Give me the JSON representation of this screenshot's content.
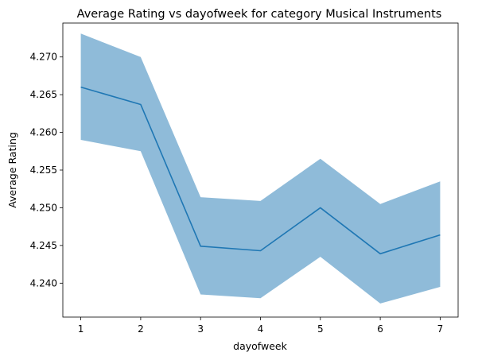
{
  "chart_data": {
    "type": "line",
    "title": "Average Rating vs dayofweek for category Musical Instruments",
    "xlabel": "dayofweek",
    "ylabel": "Average Rating",
    "x": [
      1,
      2,
      3,
      4,
      5,
      6,
      7
    ],
    "x_tick_labels": [
      "1",
      "2",
      "3",
      "4",
      "5",
      "6",
      "7"
    ],
    "y_tick_values": [
      4.24,
      4.245,
      4.25,
      4.255,
      4.26,
      4.265,
      4.27
    ],
    "y_tick_labels": [
      "4.240",
      "4.245",
      "4.250",
      "4.255",
      "4.260",
      "4.265",
      "4.270"
    ],
    "xlim": [
      0.7,
      7.3
    ],
    "ylim": [
      4.2355,
      4.2745
    ],
    "grid": false,
    "series": [
      {
        "values": [
          4.266,
          4.2637,
          4.2449,
          4.2443,
          4.25,
          4.2439,
          4.2464
        ],
        "lower": [
          4.259,
          4.2575,
          4.2385,
          4.238,
          4.2435,
          4.2373,
          4.2395
        ],
        "upper": [
          4.2731,
          4.27,
          4.2514,
          4.2509,
          4.2565,
          4.2505,
          4.2535
        ],
        "line_color": "#1f77b4",
        "band_color": "#1f77b4"
      }
    ]
  }
}
